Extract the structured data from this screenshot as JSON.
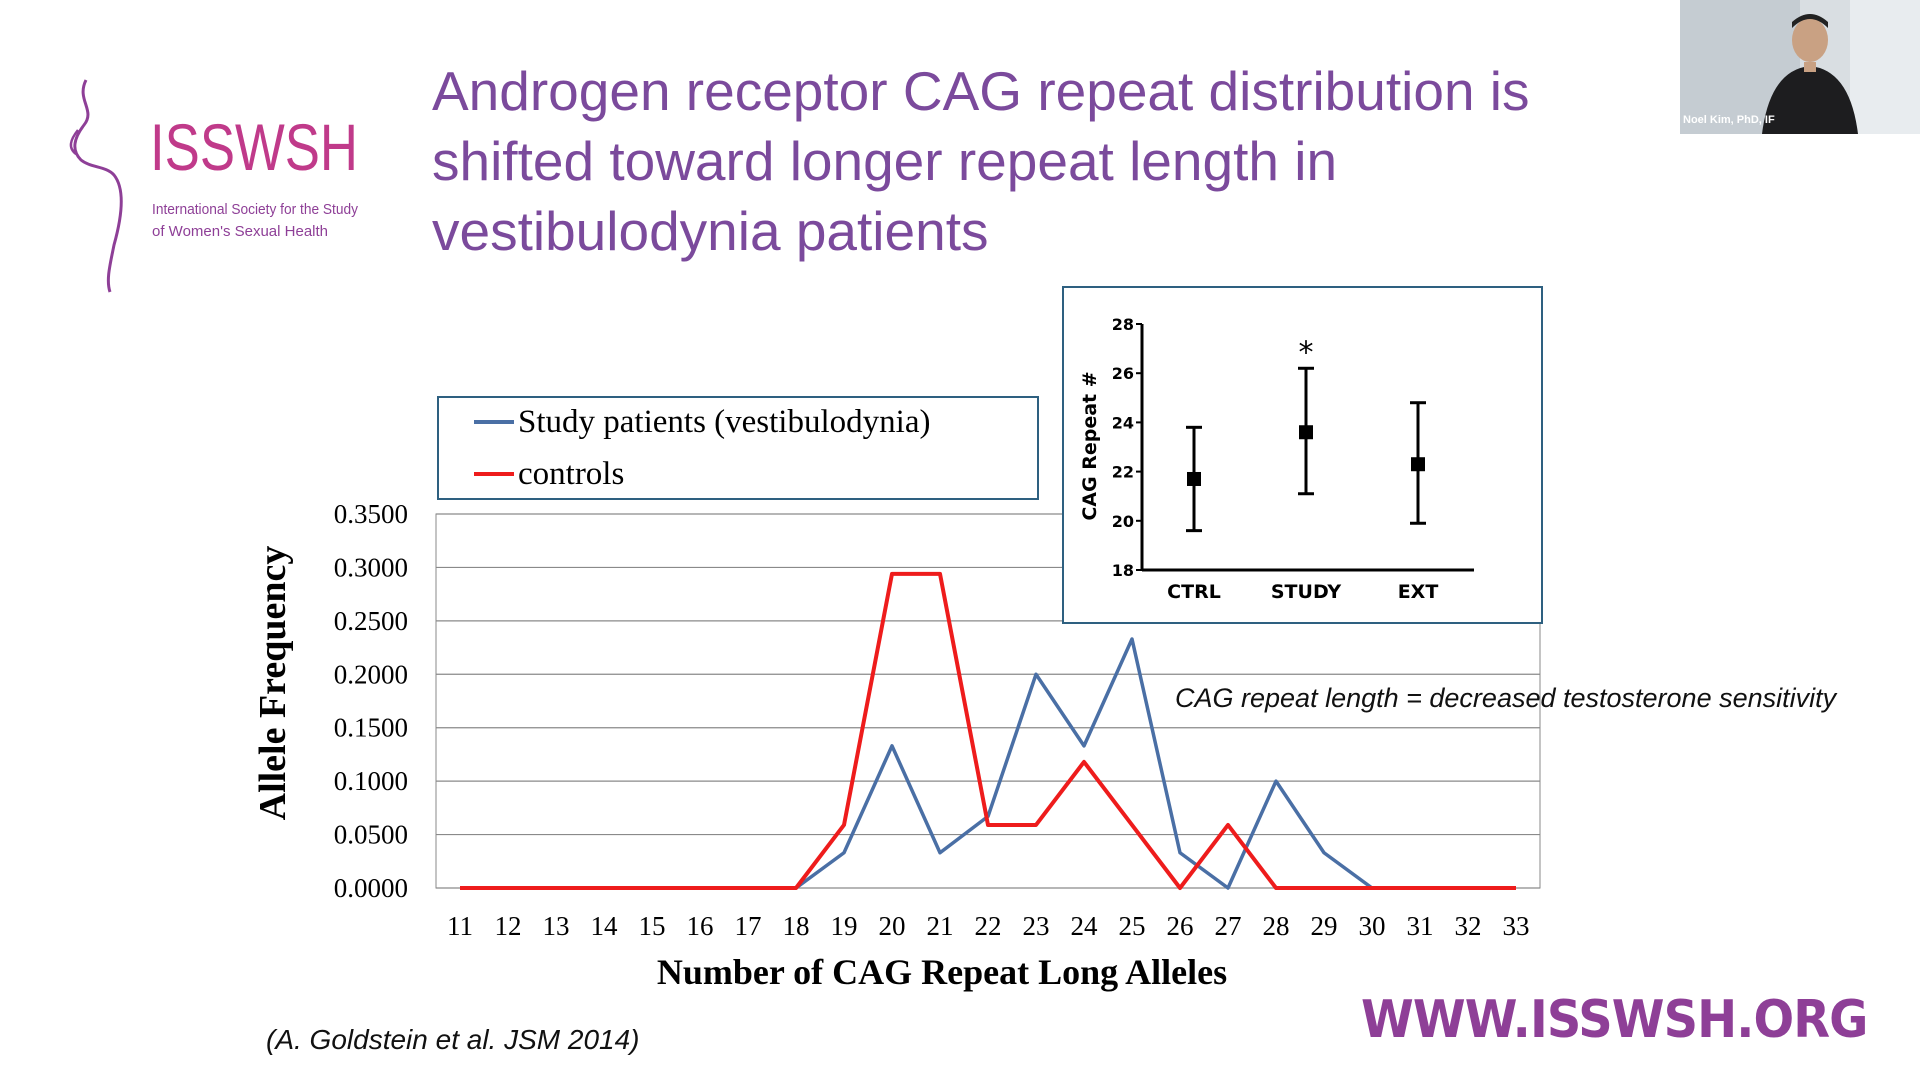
{
  "slide": {
    "title_lines": [
      "Androgen receptor CAG repeat distribution is",
      "shifted toward longer repeat length in",
      "vestibulodynia patients"
    ],
    "logo": {
      "name": "ISSWSH",
      "tagline_line1": "International Society for the Study",
      "tagline_line2": "of Women's Sexual Health"
    },
    "website": "WWW.ISSWSH.ORG",
    "citation": "(A. Goldstein et al. JSM 2014)",
    "annotation": "CAG repeat length = decreased testosterone sensitivity"
  },
  "video": {
    "participant_name": "Noel Kim, PhD, IF"
  },
  "chart_data": [
    {
      "type": "line",
      "xlabel": "Number of CAG Repeat Long Alleles",
      "ylabel": "Allele Frequency",
      "x": [
        11,
        12,
        13,
        14,
        15,
        16,
        17,
        18,
        19,
        20,
        21,
        22,
        23,
        24,
        25,
        26,
        27,
        28,
        29,
        30,
        31,
        32,
        33
      ],
      "y_ticks": [
        "0.0000",
        "0.0500",
        "0.1000",
        "0.1500",
        "0.2000",
        "0.2500",
        "0.3000",
        "0.3500"
      ],
      "ylim": [
        0,
        0.35
      ],
      "grid": true,
      "legend_position": "top",
      "series": [
        {
          "name": "Study patients (vestibulodynia)",
          "color": "#4a6fa5",
          "values": [
            0,
            0,
            0,
            0,
            0,
            0,
            0,
            0,
            0.033,
            0.133,
            0.033,
            0.067,
            0.2,
            0.133,
            0.233,
            0.033,
            0,
            0.1,
            0.033,
            0,
            0,
            0,
            0
          ]
        },
        {
          "name": "controls",
          "color": "#ee1c1c",
          "values": [
            0,
            0,
            0,
            0,
            0,
            0,
            0,
            0,
            0.059,
            0.294,
            0.294,
            0.059,
            0.059,
            0.118,
            0.059,
            0,
            0.059,
            0,
            0,
            0,
            0,
            0,
            0
          ]
        }
      ]
    },
    {
      "type": "scatter",
      "ylabel": "CAG Repeat #",
      "categories": [
        "CTRL",
        "STUDY",
        "EXT"
      ],
      "means": [
        21.7,
        23.6,
        22.3
      ],
      "error_low": [
        19.6,
        21.1,
        19.9
      ],
      "error_high": [
        23.8,
        26.2,
        24.8
      ],
      "significance": [
        "",
        "*",
        ""
      ],
      "y_ticks": [
        18,
        20,
        22,
        24,
        26,
        28
      ],
      "ylim": [
        18,
        28
      ]
    }
  ]
}
